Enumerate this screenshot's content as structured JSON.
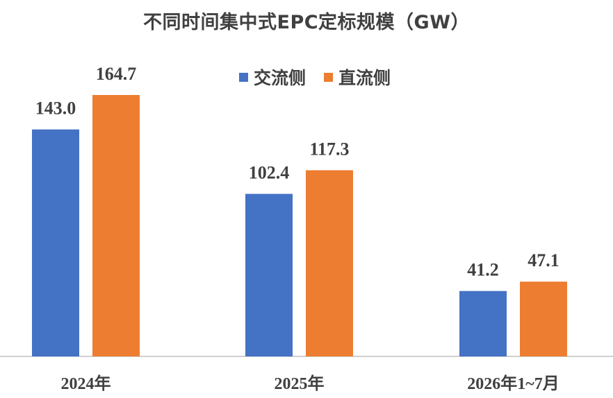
{
  "chart_data": {
    "type": "bar",
    "title": "不同时间集中式EPC定标规模（GW）",
    "categories": [
      "2024年",
      "2025年",
      "2026年1~7月"
    ],
    "series": [
      {
        "name": "交流侧",
        "color": "#4472C4",
        "values": [
          143.0,
          102.4,
          41.2
        ]
      },
      {
        "name": "直流侧",
        "color": "#ED7D31",
        "values": [
          164.7,
          117.3,
          47.1
        ]
      }
    ],
    "ylim": [
      0,
      180
    ],
    "grid": false,
    "legend_position": "top-center",
    "value_labels": [
      "143.0",
      "164.7",
      "102.4",
      "117.3",
      "41.2",
      "47.1"
    ]
  }
}
